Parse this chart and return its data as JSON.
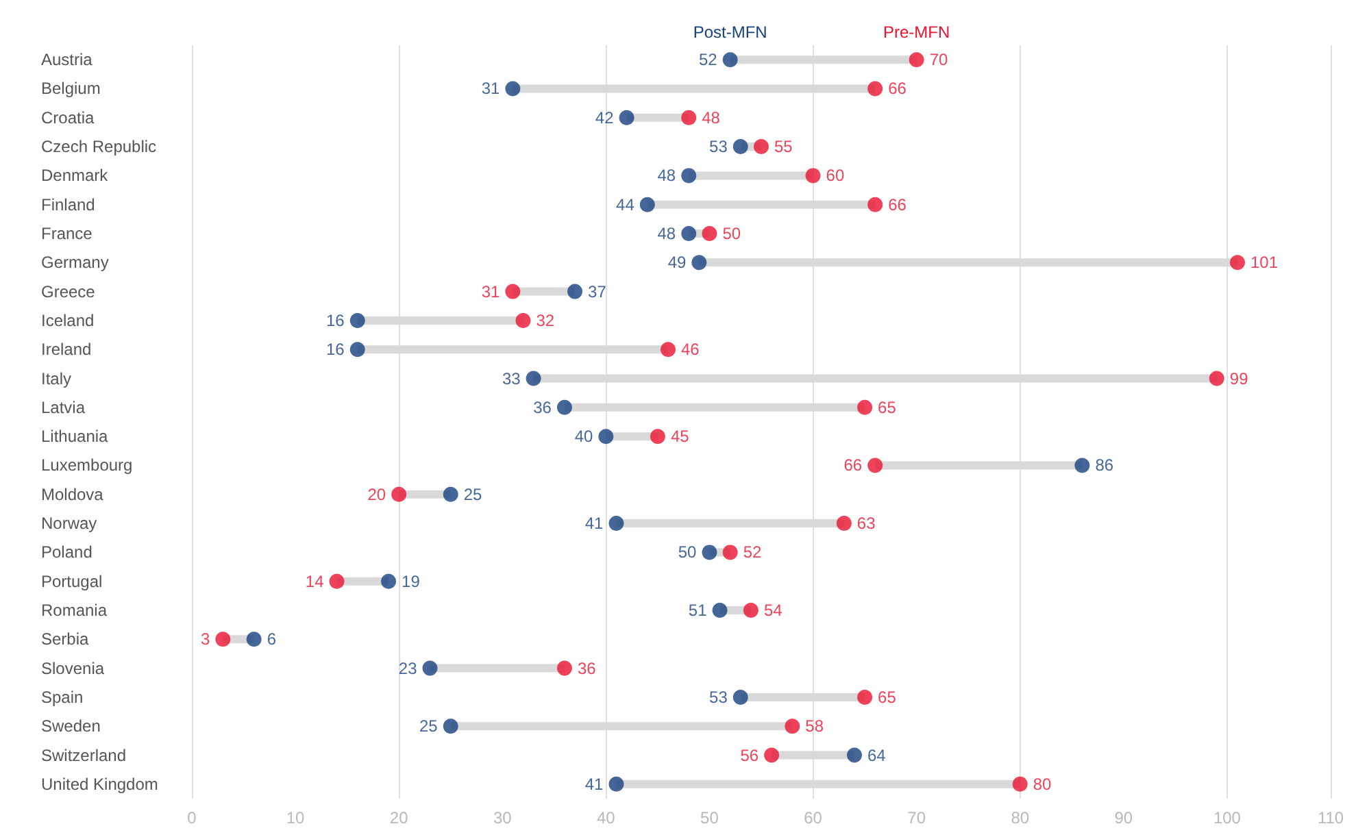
{
  "chart_data": {
    "type": "scatter",
    "orientation": "horizontal",
    "categories": [
      "Austria",
      "Belgium",
      "Croatia",
      "Czech Republic",
      "Denmark",
      "Finland",
      "France",
      "Germany",
      "Greece",
      "Iceland",
      "Ireland",
      "Italy",
      "Latvia",
      "Lithuania",
      "Luxembourg",
      "Moldova",
      "Norway",
      "Poland",
      "Portugal",
      "Romania",
      "Serbia",
      "Slovenia",
      "Spain",
      "Sweden",
      "Switzerland",
      "United Kingdom"
    ],
    "series": [
      {
        "name": "Post-MFN",
        "color": "#17407e",
        "values": [
          52,
          31,
          42,
          53,
          48,
          44,
          48,
          49,
          37,
          16,
          16,
          33,
          36,
          40,
          86,
          25,
          41,
          50,
          19,
          51,
          6,
          23,
          53,
          25,
          64,
          41
        ]
      },
      {
        "name": "Pre-MFN",
        "color": "#e8132f",
        "values": [
          70,
          66,
          48,
          55,
          60,
          66,
          50,
          101,
          31,
          32,
          46,
          99,
          65,
          45,
          66,
          20,
          63,
          52,
          14,
          54,
          3,
          36,
          65,
          58,
          56,
          80
        ]
      }
    ],
    "xlim": [
      0,
      110
    ],
    "xticks": [
      0,
      10,
      20,
      30,
      40,
      50,
      60,
      70,
      80,
      90,
      100,
      110
    ],
    "grid": "x",
    "legend": false,
    "marker": "circle",
    "data_labels": true
  }
}
